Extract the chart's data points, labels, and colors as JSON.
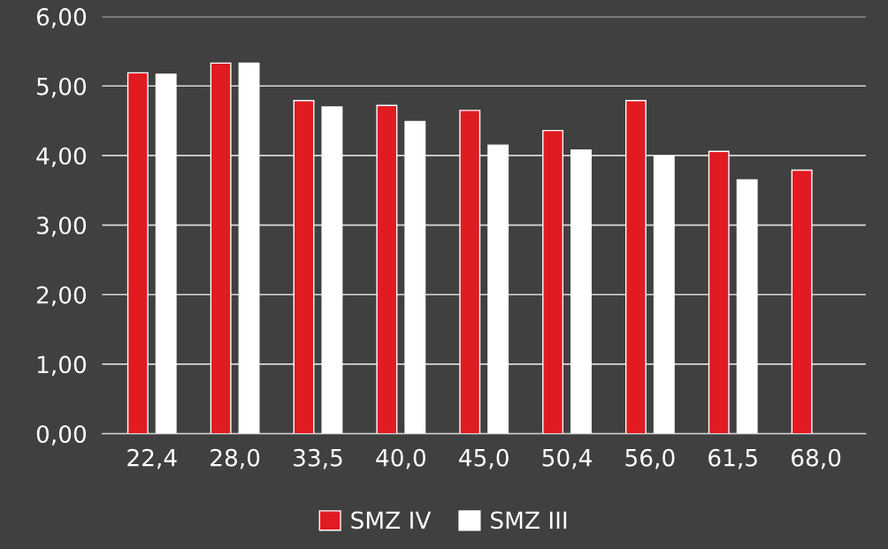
{
  "chart_data": {
    "type": "bar",
    "categories": [
      "22,4",
      "28,0",
      "33,5",
      "40,0",
      "45,0",
      "50,4",
      "56,0",
      "61,5",
      "68,0"
    ],
    "series": [
      {
        "name": "SMZ IV",
        "color": "#e11b22",
        "values": [
          5.19,
          5.33,
          4.79,
          4.72,
          4.65,
          4.36,
          4.79,
          4.06,
          3.79
        ]
      },
      {
        "name": "SMZ III",
        "color": "#ffffff",
        "values": [
          5.17,
          5.33,
          4.7,
          4.49,
          4.15,
          4.08,
          3.99,
          3.65,
          null
        ]
      }
    ],
    "ylim": [
      0,
      6
    ],
    "yticks": [
      {
        "value": 0,
        "label": "0,00"
      },
      {
        "value": 1,
        "label": "1,00"
      },
      {
        "value": 2,
        "label": "2,00"
      },
      {
        "value": 3,
        "label": "3,00"
      },
      {
        "value": 4,
        "label": "4,00"
      },
      {
        "value": 5,
        "label": "5,00"
      },
      {
        "value": 6,
        "label": "6,00"
      }
    ],
    "grid": "y",
    "legend": "bottom"
  }
}
